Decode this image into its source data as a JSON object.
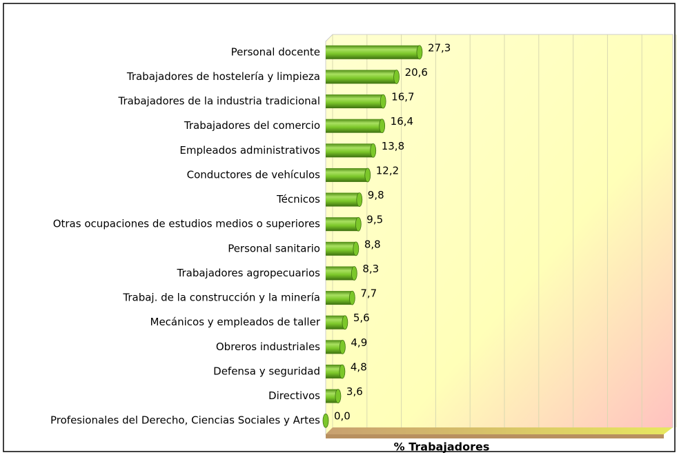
{
  "chart_data": {
    "type": "bar",
    "orientation": "horizontal",
    "x_label": "% Trabajadores",
    "categories": [
      "Personal docente",
      "Trabajadores de hostelería y limpieza",
      "Trabajadores de la industria tradicional",
      "Trabajadores del comercio",
      "Empleados administrativos",
      "Conductores de vehículos",
      "Técnicos",
      "Otras ocupaciones de estudios medios o superiores",
      "Personal sanitario",
      "Trabajadores agropecuarios",
      "Trabaj. de la construcción y la minería",
      "Mecánicos y empleados de taller",
      "Obreros industriales",
      "Defensa y seguridad",
      "Directivos",
      "Profesionales del Derecho, Ciencias Sociales y Artes"
    ],
    "values": [
      27.3,
      20.6,
      16.7,
      16.4,
      13.8,
      12.2,
      9.8,
      9.5,
      8.8,
      8.3,
      7.7,
      5.6,
      4.9,
      4.8,
      3.6,
      0.0
    ],
    "value_labels": [
      "27,3",
      "20,6",
      "16,7",
      "16,4",
      "13,8",
      "12,2",
      "9,8",
      "9,5",
      "8,8",
      "8,3",
      "7,7",
      "5,6",
      "4,9",
      "4,8",
      "3,6",
      "0,0"
    ],
    "color": "#7cc72a",
    "xlim": [
      0,
      100
    ],
    "xticks": [
      0,
      10,
      20,
      30,
      40,
      50,
      60,
      70,
      80,
      90,
      100
    ],
    "grid": true
  }
}
